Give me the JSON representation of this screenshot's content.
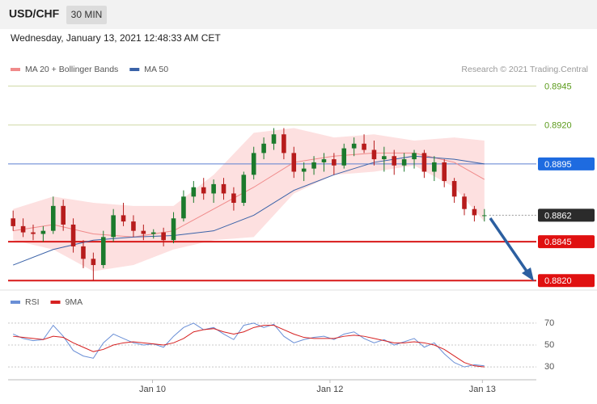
{
  "header": {
    "symbol": "USD/CHF",
    "interval": "30 MIN",
    "timestamp": "Wednesday, January 13, 2021 12:48:33 AM CET"
  },
  "chart_data": [
    {
      "type": "candlestick",
      "source": "Research © 2021 Trading.Central",
      "up_color": "#1b7a2c",
      "down_color": "#b71c1c",
      "xlim": [
        -0.5,
        47.5
      ],
      "ylim": [
        0.8816,
        0.8951
      ],
      "open": [
        0.886,
        0.8855,
        0.8851,
        0.885,
        0.8852,
        0.8868,
        0.8856,
        0.8842,
        0.8834,
        0.883,
        0.8848,
        0.8862,
        0.8858,
        0.8852,
        0.885,
        0.8851,
        0.8846,
        0.886,
        0.8874,
        0.888,
        0.8876,
        0.8882,
        0.8876,
        0.887,
        0.8888,
        0.8902,
        0.8908,
        0.8914,
        0.8902,
        0.889,
        0.8892,
        0.8896,
        0.8898,
        0.8894,
        0.8905,
        0.8908,
        0.8904,
        0.8898,
        0.89,
        0.8894,
        0.8898,
        0.8902,
        0.889,
        0.8896,
        0.8884,
        0.8874,
        0.8866,
        0.8862
      ],
      "high": [
        0.8865,
        0.886,
        0.8856,
        0.8855,
        0.8874,
        0.8872,
        0.886,
        0.8846,
        0.8838,
        0.8852,
        0.8866,
        0.887,
        0.8862,
        0.8856,
        0.8853,
        0.8854,
        0.8864,
        0.8878,
        0.8884,
        0.8886,
        0.8885,
        0.8886,
        0.888,
        0.889,
        0.8906,
        0.8912,
        0.8918,
        0.8918,
        0.8906,
        0.8896,
        0.89,
        0.8902,
        0.8902,
        0.8908,
        0.8912,
        0.8914,
        0.891,
        0.8906,
        0.8904,
        0.8902,
        0.8904,
        0.8904,
        0.89,
        0.8898,
        0.8886,
        0.8876,
        0.8868,
        0.8866
      ],
      "low": [
        0.8852,
        0.8848,
        0.8846,
        0.8845,
        0.885,
        0.8852,
        0.8838,
        0.8828,
        0.882,
        0.8828,
        0.8845,
        0.8855,
        0.8848,
        0.8846,
        0.8847,
        0.8842,
        0.8844,
        0.8858,
        0.887,
        0.8872,
        0.887,
        0.8872,
        0.8865,
        0.8868,
        0.8885,
        0.8898,
        0.8904,
        0.8898,
        0.8886,
        0.8884,
        0.8888,
        0.889,
        0.8888,
        0.8892,
        0.89,
        0.8902,
        0.8894,
        0.889,
        0.8888,
        0.889,
        0.8892,
        0.8886,
        0.8884,
        0.888,
        0.887,
        0.8862,
        0.8858,
        0.8858
      ],
      "close": [
        0.8855,
        0.8851,
        0.885,
        0.8852,
        0.8868,
        0.8856,
        0.8842,
        0.8834,
        0.883,
        0.8848,
        0.8862,
        0.8858,
        0.8852,
        0.885,
        0.8851,
        0.8846,
        0.886,
        0.8874,
        0.888,
        0.8876,
        0.8882,
        0.8876,
        0.887,
        0.8888,
        0.8902,
        0.8908,
        0.8914,
        0.8902,
        0.889,
        0.8892,
        0.8896,
        0.8898,
        0.8894,
        0.8905,
        0.8908,
        0.8904,
        0.8898,
        0.89,
        0.8894,
        0.8898,
        0.8902,
        0.889,
        0.8896,
        0.8884,
        0.8874,
        0.8866,
        0.8862,
        0.8862
      ],
      "band_color": "#fde0e0",
      "series": [
        {
          "name": "MA 20 + Bollinger Bands",
          "color": "#f08a8a",
          "x": [
            0,
            4,
            8,
            12,
            16,
            20,
            24,
            28,
            32,
            36,
            40,
            44,
            47
          ],
          "values": [
            0.8852,
            0.8856,
            0.885,
            0.8848,
            0.8852,
            0.8866,
            0.888,
            0.8896,
            0.89,
            0.8902,
            0.8902,
            0.8896,
            0.8885
          ],
          "upper": [
            0.8866,
            0.8874,
            0.887,
            0.8868,
            0.8868,
            0.8888,
            0.8915,
            0.8918,
            0.8912,
            0.8914,
            0.891,
            0.8912,
            0.891
          ],
          "lower": [
            0.8846,
            0.884,
            0.8826,
            0.883,
            0.884,
            0.8846,
            0.8848,
            0.8876,
            0.8888,
            0.889,
            0.8894,
            0.888,
            0.8858
          ]
        },
        {
          "name": "MA 50",
          "color": "#3a62a8",
          "x": [
            0,
            4,
            8,
            12,
            16,
            20,
            24,
            28,
            32,
            36,
            40,
            44,
            47
          ],
          "values": [
            0.883,
            0.884,
            0.8846,
            0.8848,
            0.8849,
            0.8852,
            0.8862,
            0.8878,
            0.8888,
            0.8896,
            0.89,
            0.8898,
            0.8895
          ]
        }
      ],
      "levels": [
        {
          "value": 0.8945,
          "label": "0.8945",
          "color": "#5a9a1a",
          "line_color": "#cfd9a6",
          "boxed": false,
          "dotted": false
        },
        {
          "value": 0.892,
          "label": "0.8920",
          "color": "#5a9a1a",
          "line_color": "#cfd9a6",
          "boxed": false,
          "dotted": false
        },
        {
          "value": 0.8895,
          "label": "0.8895",
          "color": "#1e6be0",
          "line_color": "#5b7fd0",
          "boxed": true,
          "dotted": false
        },
        {
          "value": 0.8862,
          "label": "0.8862",
          "color": "#2b2b2b",
          "line_color": "#999999",
          "boxed": true,
          "dotted": true
        },
        {
          "value": 0.8845,
          "label": "0.8845",
          "color": "#e01010",
          "line_color": "#d81818",
          "boxed": true,
          "dotted": false
        },
        {
          "value": 0.882,
          "label": "0.8820",
          "color": "#e01010",
          "line_color": "#d81818",
          "boxed": true,
          "dotted": false
        }
      ]
    },
    {
      "type": "line",
      "xlim": [
        -0.5,
        47.5
      ],
      "ylim": [
        22,
        81
      ],
      "yticks": [
        30,
        50,
        70
      ],
      "grid": true,
      "xticks": [
        {
          "value": 13.9,
          "label": "Jan 10"
        },
        {
          "value": 31.6,
          "label": "Jan 12"
        },
        {
          "value": 46.8,
          "label": "Jan 13"
        }
      ],
      "series": [
        {
          "name": "RSI",
          "color": "#6a8fd6",
          "values": [
            60,
            56,
            54,
            55,
            68,
            58,
            45,
            40,
            38,
            52,
            60,
            56,
            52,
            50,
            51,
            48,
            58,
            66,
            70,
            64,
            66,
            60,
            55,
            68,
            70,
            66,
            69,
            58,
            52,
            55,
            57,
            58,
            55,
            60,
            62,
            56,
            52,
            55,
            50,
            53,
            56,
            48,
            52,
            42,
            34,
            30,
            32,
            31
          ]
        },
        {
          "name": "9MA",
          "color": "#d62020",
          "values": [
            58,
            57,
            56,
            55,
            58,
            57,
            52,
            48,
            44,
            46,
            50,
            52,
            53,
            52,
            51,
            50,
            52,
            56,
            62,
            64,
            65,
            62,
            60,
            62,
            66,
            68,
            68,
            64,
            60,
            57,
            56,
            56,
            56,
            58,
            59,
            58,
            56,
            54,
            52,
            52,
            53,
            52,
            50,
            46,
            40,
            34,
            31,
            30
          ]
        }
      ]
    }
  ]
}
